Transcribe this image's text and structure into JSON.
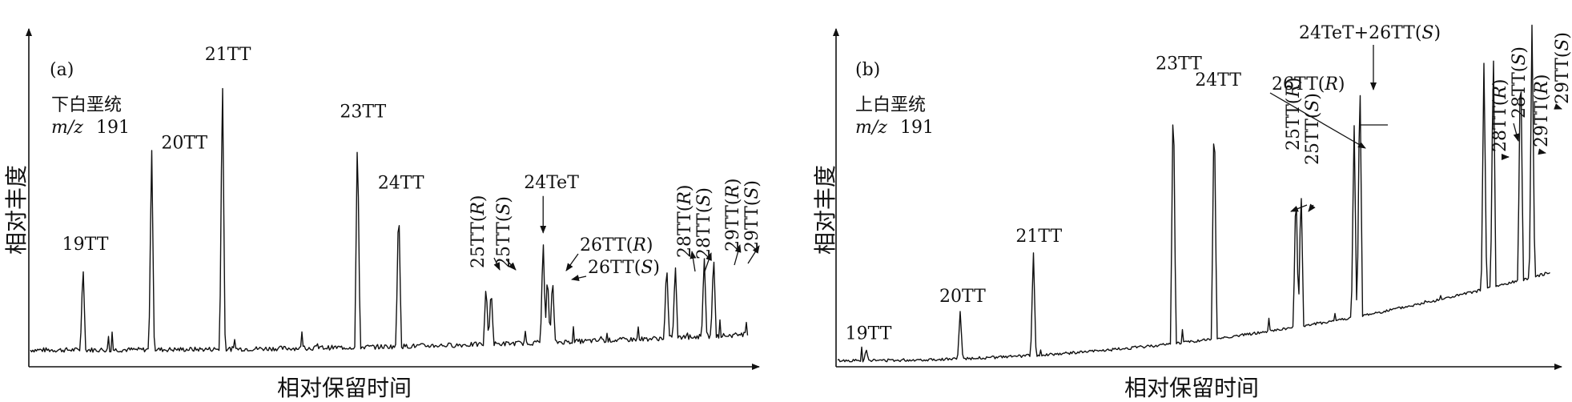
{
  "chart_data": [
    {
      "type": "line",
      "panel_label": "(a)",
      "sample": "下白垩统",
      "mz_label": "m/z",
      "mz_value": "191",
      "xlabel": "相对保留时间",
      "ylabel": "相对丰度",
      "x_range": [
        0,
        1000
      ],
      "y_range": [
        0,
        100
      ],
      "peaks": [
        {
          "x": 75,
          "height": 28,
          "label": "19TT"
        },
        {
          "x": 170,
          "height": 66,
          "label": "20TT"
        },
        {
          "x": 268,
          "height": 89,
          "label": "21TT"
        },
        {
          "x": 455,
          "height": 70,
          "label": "23TT"
        },
        {
          "x": 512,
          "height": 48,
          "label": "24TT"
        },
        {
          "x": 633,
          "height": 20,
          "label": "25TT(R)"
        },
        {
          "x": 640,
          "height": 19,
          "label": "25TT(S)"
        },
        {
          "x": 712,
          "height": 34,
          "label": "24TeT"
        },
        {
          "x": 718,
          "height": 23,
          "label": "26TT(R)"
        },
        {
          "x": 725,
          "height": 22,
          "label": "26TT(S)"
        },
        {
          "x": 883,
          "height": 25,
          "label": "28TT(R)"
        },
        {
          "x": 895,
          "height": 24,
          "label": "28TT(S)"
        },
        {
          "x": 935,
          "height": 26,
          "label": "29TT(R)"
        },
        {
          "x": 948,
          "height": 27,
          "label": "29TT(S)"
        }
      ]
    },
    {
      "type": "line",
      "panel_label": "(b)",
      "sample": "上白垩统",
      "mz_label": "m/z",
      "mz_value": "191",
      "xlabel": "相对保留时间",
      "ylabel": "相对丰度",
      "x_range": [
        0,
        1000
      ],
      "y_range": [
        0,
        100
      ],
      "peaks": [
        {
          "x": 42,
          "height": 4,
          "label": "19TT"
        },
        {
          "x": 173,
          "height": 15,
          "label": "20TT"
        },
        {
          "x": 275,
          "height": 33,
          "label": "21TT"
        },
        {
          "x": 470,
          "height": 83,
          "label": "23TT"
        },
        {
          "x": 527,
          "height": 76,
          "label": "24TT"
        },
        {
          "x": 641,
          "height": 46,
          "label": "25TT(R)"
        },
        {
          "x": 648,
          "height": 45,
          "label": "25TT(S)"
        },
        {
          "x": 722,
          "height": 61,
          "label": "26TT(R)"
        },
        {
          "x": 730,
          "height": 78,
          "label": "24TeT+26TT(S)"
        },
        {
          "x": 903,
          "height": 72,
          "label": "28TT(R)"
        },
        {
          "x": 916,
          "height": 76,
          "label": "28TT(S)"
        },
        {
          "x": 954,
          "height": 74,
          "label": "29TT(R)"
        },
        {
          "x": 970,
          "height": 81,
          "label": "29TT(S)"
        }
      ]
    }
  ]
}
